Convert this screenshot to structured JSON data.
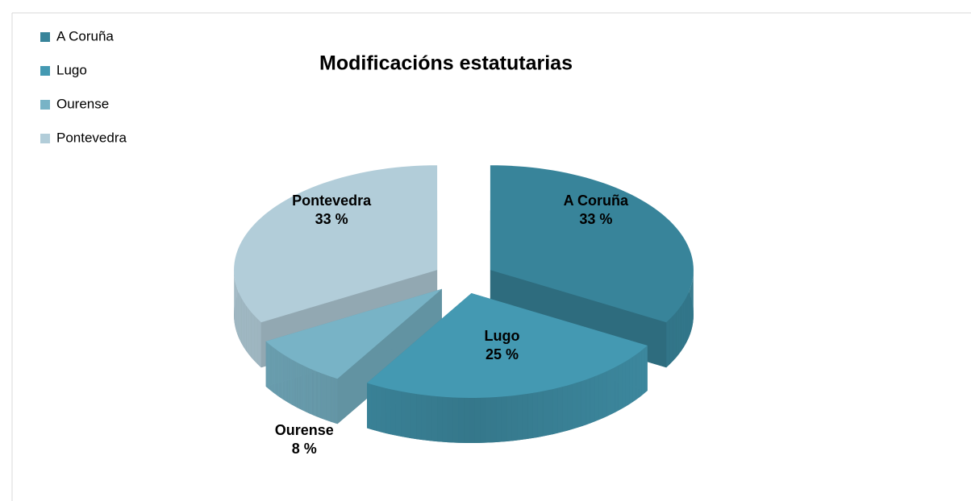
{
  "chart_data": {
    "type": "pie",
    "title": "Modificacións estatutarias",
    "categories": [
      "A Coruña",
      "Lugo",
      "Ourense",
      "Pontevedra"
    ],
    "values": [
      33,
      25,
      8,
      33
    ],
    "value_labels": [
      "33 %",
      "25 %",
      "8 %",
      "33 %"
    ],
    "colors": [
      "#38849a",
      "#4499b2",
      "#78b3c6",
      "#b2cdd9"
    ],
    "legend": "top-left",
    "exploded": true,
    "three_d": true
  }
}
